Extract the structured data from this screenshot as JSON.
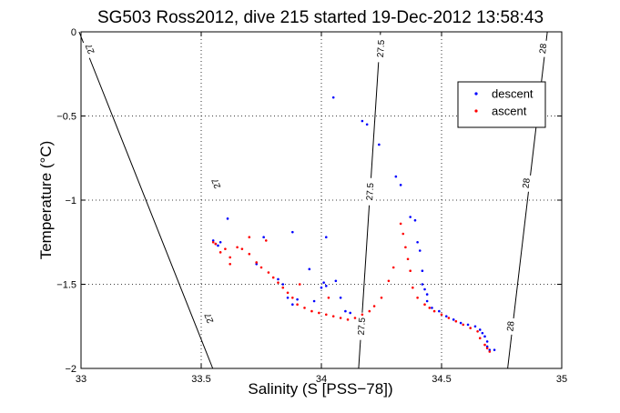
{
  "chart_data": {
    "type": "scatter",
    "title": "SG503 Ross2012, dive 215 started 19-Dec-2012 13:58:43",
    "xlabel": "Salinity (S [PSS−78])",
    "ylabel": "Temperature (°C)",
    "xlim": [
      33,
      35
    ],
    "ylim": [
      -2,
      0
    ],
    "xticks": [
      {
        "value": 33,
        "label": "33"
      },
      {
        "value": 33.5,
        "label": "33.5"
      },
      {
        "value": 34,
        "label": "34"
      },
      {
        "value": 34.5,
        "label": "34.5"
      },
      {
        "value": 35,
        "label": "35"
      }
    ],
    "yticks": [
      {
        "value": 0,
        "label": "0"
      },
      {
        "value": -0.5,
        "label": "−0.5"
      },
      {
        "value": -1,
        "label": "−1"
      },
      {
        "value": -1.5,
        "label": "−1.5"
      },
      {
        "value": -2,
        "label": "−2"
      }
    ],
    "grid": true,
    "legend_position": "top-right",
    "density_contours": [
      {
        "label": "27",
        "points": [
          [
            32.992,
            0
          ],
          [
            33.548,
            -2
          ]
        ],
        "label_positions": [
          [
            33.04,
            -0.1
          ],
          [
            33.565,
            -0.9
          ],
          [
            33.535,
            -1.7
          ]
        ]
      },
      {
        "label": "27.5",
        "points": [
          [
            34.246,
            0
          ],
          [
            34.155,
            -2
          ]
        ],
        "label_positions": [
          [
            34.25,
            -0.1
          ],
          [
            34.205,
            -0.95
          ],
          [
            34.17,
            -1.75
          ]
        ]
      },
      {
        "label": "28",
        "points": [
          [
            34.94,
            0
          ],
          [
            34.775,
            -2
          ]
        ],
        "label_positions": [
          [
            34.925,
            -0.1
          ],
          [
            34.855,
            -0.9
          ],
          [
            34.79,
            -1.75
          ]
        ]
      }
    ],
    "series": [
      {
        "name": "descent",
        "color": "#0000ff",
        "points": [
          [
            34.05,
            -0.39
          ],
          [
            34.17,
            -0.53
          ],
          [
            34.19,
            -0.55
          ],
          [
            34.24,
            -0.67
          ],
          [
            34.31,
            -0.86
          ],
          [
            34.33,
            -0.91
          ],
          [
            34.37,
            -1.1
          ],
          [
            34.39,
            -1.12
          ],
          [
            34.4,
            -1.25
          ],
          [
            34.41,
            -1.3
          ],
          [
            34.42,
            -1.42
          ],
          [
            34.42,
            -1.5
          ],
          [
            34.43,
            -1.53
          ],
          [
            34.44,
            -1.56
          ],
          [
            34.44,
            -1.6
          ],
          [
            34.46,
            -1.64
          ],
          [
            34.49,
            -1.66
          ],
          [
            34.52,
            -1.69
          ],
          [
            34.55,
            -1.71
          ],
          [
            34.58,
            -1.73
          ],
          [
            34.61,
            -1.74
          ],
          [
            34.64,
            -1.75
          ],
          [
            34.66,
            -1.77
          ],
          [
            34.67,
            -1.79
          ],
          [
            34.68,
            -1.81
          ],
          [
            34.69,
            -1.84
          ],
          [
            34.69,
            -1.87
          ],
          [
            34.7,
            -1.89
          ],
          [
            34.72,
            -1.89
          ],
          [
            33.55,
            -1.24
          ],
          [
            33.56,
            -1.26
          ],
          [
            33.57,
            -1.27
          ],
          [
            33.58,
            -1.25
          ],
          [
            33.61,
            -1.11
          ],
          [
            33.76,
            -1.22
          ],
          [
            33.73,
            -1.38
          ],
          [
            33.82,
            -1.47
          ],
          [
            33.84,
            -1.5
          ],
          [
            33.86,
            -1.58
          ],
          [
            33.88,
            -1.62
          ],
          [
            33.9,
            -1.59
          ],
          [
            33.95,
            -1.41
          ],
          [
            33.97,
            -1.6
          ],
          [
            34.01,
            -1.49
          ],
          [
            34.02,
            -1.51
          ],
          [
            34.0,
            -1.52
          ],
          [
            33.88,
            -1.19
          ],
          [
            34.02,
            -1.22
          ],
          [
            34.06,
            -1.48
          ],
          [
            34.08,
            -1.58
          ],
          [
            34.1,
            -1.66
          ],
          [
            34.12,
            -1.67
          ]
        ]
      },
      {
        "name": "ascent",
        "color": "#ff0000",
        "points": [
          [
            34.7,
            -1.9
          ],
          [
            34.69,
            -1.88
          ],
          [
            34.68,
            -1.86
          ],
          [
            34.66,
            -1.82
          ],
          [
            34.65,
            -1.78
          ],
          [
            34.62,
            -1.76
          ],
          [
            34.59,
            -1.74
          ],
          [
            34.56,
            -1.72
          ],
          [
            34.53,
            -1.7
          ],
          [
            34.5,
            -1.68
          ],
          [
            34.47,
            -1.66
          ],
          [
            34.45,
            -1.64
          ],
          [
            34.43,
            -1.62
          ],
          [
            34.4,
            -1.58
          ],
          [
            34.38,
            -1.52
          ],
          [
            34.37,
            -1.42
          ],
          [
            34.36,
            -1.35
          ],
          [
            34.35,
            -1.28
          ],
          [
            34.34,
            -1.2
          ],
          [
            34.33,
            -1.14
          ],
          [
            34.3,
            -1.4
          ],
          [
            34.28,
            -1.48
          ],
          [
            34.25,
            -1.58
          ],
          [
            34.22,
            -1.63
          ],
          [
            34.2,
            -1.66
          ],
          [
            34.17,
            -1.68
          ],
          [
            34.14,
            -1.7
          ],
          [
            34.11,
            -1.71
          ],
          [
            34.08,
            -1.7
          ],
          [
            34.05,
            -1.69
          ],
          [
            34.02,
            -1.68
          ],
          [
            33.99,
            -1.67
          ],
          [
            33.96,
            -1.66
          ],
          [
            33.93,
            -1.64
          ],
          [
            33.9,
            -1.62
          ],
          [
            33.88,
            -1.58
          ],
          [
            33.86,
            -1.55
          ],
          [
            33.84,
            -1.52
          ],
          [
            33.82,
            -1.49
          ],
          [
            33.8,
            -1.46
          ],
          [
            33.78,
            -1.43
          ],
          [
            33.75,
            -1.4
          ],
          [
            33.73,
            -1.37
          ],
          [
            33.7,
            -1.32
          ],
          [
            33.67,
            -1.29
          ],
          [
            33.65,
            -1.28
          ],
          [
            33.62,
            -1.34
          ],
          [
            33.6,
            -1.29
          ],
          [
            33.58,
            -1.31
          ],
          [
            33.56,
            -1.26
          ],
          [
            33.55,
            -1.25
          ],
          [
            33.62,
            -1.38
          ],
          [
            33.7,
            -1.22
          ],
          [
            33.77,
            -1.24
          ],
          [
            33.91,
            -1.5
          ],
          [
            34.03,
            -1.58
          ]
        ]
      }
    ]
  }
}
